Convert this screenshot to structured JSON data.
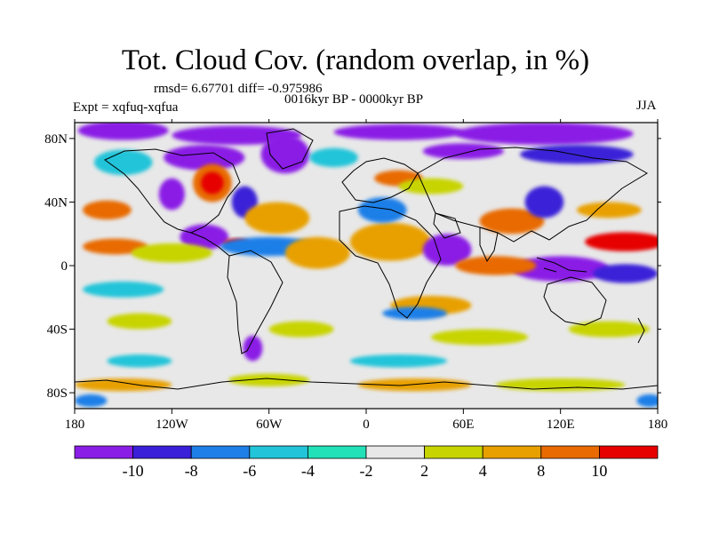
{
  "title": "Tot. Cloud Cov. (random overlap, in %)",
  "stats_line": "rmsd= 6.67701 diff= -0.975986",
  "period": "0016kyr BP - 0000kyr BP",
  "experiment": "Expt = xqfuq-xqfua",
  "season": "JJA",
  "axes": {
    "lon_ticks": [
      {
        "value": -180,
        "label": "180"
      },
      {
        "value": -120,
        "label": "120W"
      },
      {
        "value": -60,
        "label": "60W"
      },
      {
        "value": 0,
        "label": "0"
      },
      {
        "value": 60,
        "label": "60E"
      },
      {
        "value": 120,
        "label": "120E"
      },
      {
        "value": 180,
        "label": "180"
      }
    ],
    "lat_ticks": [
      {
        "value": 80,
        "label": "80N"
      },
      {
        "value": 40,
        "label": "40N"
      },
      {
        "value": 0,
        "label": "0"
      },
      {
        "value": -40,
        "label": "40S"
      },
      {
        "value": -80,
        "label": "80S"
      }
    ],
    "lon_range": [
      -180,
      180
    ],
    "lat_range": [
      -90,
      90
    ]
  },
  "colorbar": {
    "levels": [
      "-10",
      "-8",
      "-6",
      "-4",
      "-2",
      "2",
      "4",
      "8",
      "10"
    ],
    "colors": [
      "#8a1ee6",
      "#3a20d8",
      "#1f7fe8",
      "#22c4d9",
      "#22e0b8",
      "#e8e8e8",
      "#c8d400",
      "#e8a000",
      "#e86a00",
      "#e60000"
    ]
  },
  "field_blobs": [
    {
      "lon": -150,
      "lat": 85,
      "rx": 28,
      "ry": 6,
      "cls": 0
    },
    {
      "lon": -80,
      "lat": 82,
      "rx": 40,
      "ry": 6,
      "cls": 0
    },
    {
      "lon": 20,
      "lat": 84,
      "rx": 40,
      "ry": 5,
      "cls": 0
    },
    {
      "lon": 110,
      "lat": 83,
      "rx": 55,
      "ry": 7,
      "cls": 0
    },
    {
      "lon": 130,
      "lat": 70,
      "rx": 35,
      "ry": 6,
      "cls": 1
    },
    {
      "lon": 60,
      "lat": 72,
      "rx": 25,
      "ry": 5,
      "cls": 0
    },
    {
      "lon": -150,
      "lat": 65,
      "rx": 18,
      "ry": 8,
      "cls": 3
    },
    {
      "lon": -100,
      "lat": 68,
      "rx": 25,
      "ry": 8,
      "cls": 0
    },
    {
      "lon": -50,
      "lat": 70,
      "rx": 15,
      "ry": 12,
      "cls": 0
    },
    {
      "lon": -20,
      "lat": 68,
      "rx": 15,
      "ry": 6,
      "cls": 3
    },
    {
      "lon": -95,
      "lat": 52,
      "rx": 12,
      "ry": 12,
      "cls": 8
    },
    {
      "lon": -95,
      "lat": 52,
      "rx": 7,
      "ry": 7,
      "cls": 9
    },
    {
      "lon": -120,
      "lat": 45,
      "rx": 8,
      "ry": 10,
      "cls": 0
    },
    {
      "lon": -75,
      "lat": 40,
      "rx": 8,
      "ry": 10,
      "cls": 1
    },
    {
      "lon": -160,
      "lat": 35,
      "rx": 15,
      "ry": 6,
      "cls": 8
    },
    {
      "lon": -55,
      "lat": 30,
      "rx": 20,
      "ry": 10,
      "cls": 7
    },
    {
      "lon": -100,
      "lat": 18,
      "rx": 15,
      "ry": 8,
      "cls": 0
    },
    {
      "lon": -80,
      "lat": 14,
      "rx": 8,
      "ry": 3,
      "cls": 9
    },
    {
      "lon": -155,
      "lat": 12,
      "rx": 20,
      "ry": 5,
      "cls": 8
    },
    {
      "lon": -120,
      "lat": 8,
      "rx": 25,
      "ry": 6,
      "cls": 6
    },
    {
      "lon": -60,
      "lat": 12,
      "rx": 30,
      "ry": 6,
      "cls": 2
    },
    {
      "lon": -30,
      "lat": 8,
      "rx": 20,
      "ry": 10,
      "cls": 7
    },
    {
      "lon": 15,
      "lat": 15,
      "rx": 25,
      "ry": 12,
      "cls": 7
    },
    {
      "lon": 10,
      "lat": 35,
      "rx": 15,
      "ry": 8,
      "cls": 2
    },
    {
      "lon": 20,
      "lat": 55,
      "rx": 15,
      "ry": 5,
      "cls": 8
    },
    {
      "lon": 40,
      "lat": 50,
      "rx": 20,
      "ry": 5,
      "cls": 6
    },
    {
      "lon": 50,
      "lat": 10,
      "rx": 15,
      "ry": 10,
      "cls": 0
    },
    {
      "lon": 90,
      "lat": 28,
      "rx": 20,
      "ry": 8,
      "cls": 8
    },
    {
      "lon": 110,
      "lat": 40,
      "rx": 12,
      "ry": 10,
      "cls": 1
    },
    {
      "lon": 150,
      "lat": 35,
      "rx": 20,
      "ry": 5,
      "cls": 7
    },
    {
      "lon": 160,
      "lat": 15,
      "rx": 25,
      "ry": 6,
      "cls": 9
    },
    {
      "lon": 120,
      "lat": -2,
      "rx": 30,
      "ry": 8,
      "cls": 0
    },
    {
      "lon": 160,
      "lat": -5,
      "rx": 20,
      "ry": 6,
      "cls": 1
    },
    {
      "lon": 80,
      "lat": 0,
      "rx": 25,
      "ry": 6,
      "cls": 8
    },
    {
      "lon": 40,
      "lat": -25,
      "rx": 25,
      "ry": 6,
      "cls": 7
    },
    {
      "lon": 30,
      "lat": -30,
      "rx": 20,
      "ry": 4,
      "cls": 2
    },
    {
      "lon": -150,
      "lat": -15,
      "rx": 25,
      "ry": 5,
      "cls": 3
    },
    {
      "lon": -140,
      "lat": -35,
      "rx": 20,
      "ry": 5,
      "cls": 6
    },
    {
      "lon": -40,
      "lat": -40,
      "rx": 20,
      "ry": 5,
      "cls": 6
    },
    {
      "lon": 70,
      "lat": -45,
      "rx": 30,
      "ry": 5,
      "cls": 6
    },
    {
      "lon": 150,
      "lat": -40,
      "rx": 25,
      "ry": 5,
      "cls": 6
    },
    {
      "lon": -140,
      "lat": -60,
      "rx": 20,
      "ry": 4,
      "cls": 3
    },
    {
      "lon": -70,
      "lat": -52,
      "rx": 6,
      "ry": 8,
      "cls": 0
    },
    {
      "lon": 20,
      "lat": -60,
      "rx": 30,
      "ry": 4,
      "cls": 3
    },
    {
      "lon": -150,
      "lat": -75,
      "rx": 30,
      "ry": 4,
      "cls": 7
    },
    {
      "lon": -60,
      "lat": -72,
      "rx": 25,
      "ry": 4,
      "cls": 6
    },
    {
      "lon": 30,
      "lat": -75,
      "rx": 35,
      "ry": 4,
      "cls": 7
    },
    {
      "lon": 120,
      "lat": -75,
      "rx": 40,
      "ry": 4,
      "cls": 6
    },
    {
      "lon": -170,
      "lat": -85,
      "rx": 10,
      "ry": 4,
      "cls": 2
    },
    {
      "lon": 175,
      "lat": -85,
      "rx": 8,
      "ry": 4,
      "cls": 2
    }
  ]
}
